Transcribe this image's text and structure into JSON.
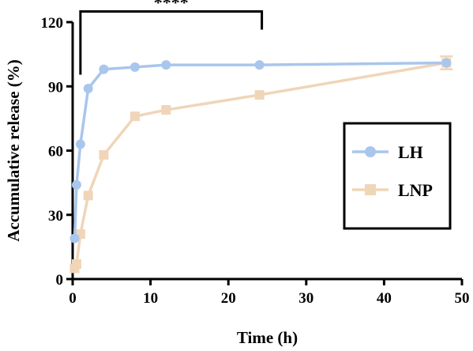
{
  "chart_data": {
    "type": "line",
    "xlabel": "Time (h)",
    "ylabel": "Accumulative release (%)",
    "xlim": [
      0,
      50
    ],
    "ylim": [
      0,
      120
    ],
    "x_ticks": [
      "0",
      "10",
      "20",
      "30",
      "40",
      "50"
    ],
    "y_ticks": [
      "0",
      "30",
      "60",
      "90",
      "120"
    ],
    "grid": false,
    "legend_position": "right",
    "series": [
      {
        "name": "LH",
        "color": "#a9c6ec",
        "marker": "circle",
        "x": [
          0.25,
          0.5,
          1,
          2,
          4,
          8,
          12,
          24,
          48
        ],
        "y": [
          19,
          44,
          63,
          89,
          98,
          99,
          100,
          100,
          101
        ]
      },
      {
        "name": "LNP",
        "color": "#f0d5b8",
        "marker": "square",
        "x": [
          0.25,
          0.5,
          1,
          2,
          4,
          8,
          12,
          24,
          48
        ],
        "y": [
          5,
          7,
          21,
          39,
          58,
          76,
          79,
          86,
          101
        ],
        "error": [
          0,
          0,
          0,
          0,
          0,
          0,
          0,
          0,
          3
        ]
      }
    ],
    "annotations": [
      {
        "text": "****",
        "x_from": 1,
        "x_to": 24.3,
        "y": 125
      }
    ]
  }
}
